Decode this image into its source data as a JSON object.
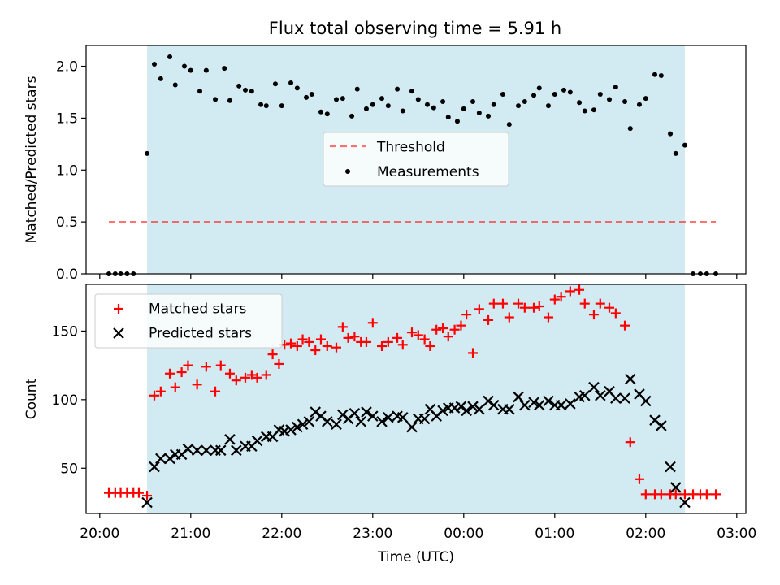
{
  "title": "Flux total observing time = 5.91 h",
  "colors": {
    "shade": "#add8e6",
    "threshold": "#ff0000",
    "matched": "#ff0000",
    "predicted": "#000000",
    "measurements": "#000000"
  },
  "chart_data": [
    {
      "type": "scatter",
      "ylabel": "Matched/Predicted stars",
      "ylim": [
        0,
        2.2
      ],
      "xlim": [
        19.85,
        27.1
      ],
      "yticks": [
        "0.0",
        "0.5",
        "1.0",
        "1.5",
        "2.0"
      ],
      "ytick_values": [
        0,
        0.5,
        1.0,
        1.5,
        2.0
      ],
      "shaded_span": [
        20.52,
        26.43
      ],
      "threshold": {
        "name": "Threshold",
        "y": 0.5,
        "x_range": [
          20.1,
          26.77
        ],
        "style": "dashed"
      },
      "legend": {
        "placement": "center",
        "entries": [
          "Threshold",
          "Measurements"
        ]
      },
      "series": [
        {
          "name": "Measurements",
          "x": [
            20.1,
            20.17,
            20.23,
            20.3,
            20.37,
            20.52,
            20.6,
            20.67,
            20.77,
            20.83,
            20.93,
            21.0,
            21.1,
            21.17,
            21.27,
            21.37,
            21.43,
            21.53,
            21.6,
            21.67,
            21.77,
            21.83,
            21.93,
            22.0,
            22.1,
            22.17,
            22.27,
            22.33,
            22.43,
            22.5,
            22.6,
            22.67,
            22.77,
            22.83,
            22.93,
            23.0,
            23.1,
            23.17,
            23.27,
            23.33,
            23.43,
            23.5,
            23.6,
            23.67,
            23.77,
            23.83,
            23.93,
            24.0,
            24.1,
            24.17,
            24.27,
            24.33,
            24.43,
            24.5,
            24.6,
            24.67,
            24.77,
            24.83,
            24.93,
            25.0,
            25.1,
            25.17,
            25.27,
            25.33,
            25.43,
            25.5,
            25.6,
            25.67,
            25.77,
            25.83,
            25.93,
            26.0,
            26.1,
            26.17,
            26.27,
            26.33,
            26.43,
            26.52,
            26.6,
            26.67,
            26.77
          ],
          "y": [
            0,
            0,
            0,
            0,
            0,
            1.16,
            2.02,
            1.88,
            2.09,
            1.82,
            2.0,
            1.96,
            1.76,
            1.96,
            1.68,
            1.98,
            1.67,
            1.81,
            1.77,
            1.76,
            1.63,
            1.62,
            1.83,
            1.62,
            1.84,
            1.79,
            1.7,
            1.73,
            1.56,
            1.54,
            1.68,
            1.69,
            1.52,
            1.78,
            1.59,
            1.63,
            1.69,
            1.62,
            1.78,
            1.57,
            1.76,
            1.68,
            1.63,
            1.6,
            1.66,
            1.51,
            1.47,
            1.59,
            1.66,
            1.55,
            1.52,
            1.63,
            1.73,
            1.44,
            1.62,
            1.66,
            1.72,
            1.79,
            1.62,
            1.73,
            1.77,
            1.75,
            1.65,
            1.57,
            1.58,
            1.73,
            1.68,
            1.8,
            1.66,
            1.4,
            1.63,
            1.69,
            1.92,
            1.91,
            1.35,
            1.16,
            1.24,
            0,
            0,
            0,
            0
          ]
        }
      ]
    },
    {
      "type": "scatter",
      "ylabel": "Count",
      "xlabel": "Time (UTC)",
      "ylim": [
        17,
        184
      ],
      "xlim": [
        19.85,
        27.1
      ],
      "yticks": [
        "50",
        "100",
        "150"
      ],
      "ytick_values": [
        50,
        100,
        150
      ],
      "xticks": [
        "20:00",
        "21:00",
        "22:00",
        "23:00",
        "00:00",
        "01:00",
        "02:00",
        "03:00"
      ],
      "xtick_values": [
        20,
        21,
        22,
        23,
        24,
        25,
        26,
        27
      ],
      "shaded_span": [
        20.52,
        26.43
      ],
      "legend": {
        "placement": "upper left",
        "entries": [
          "Matched stars",
          "Predicted stars"
        ]
      },
      "series": [
        {
          "name": "Matched stars",
          "x": [
            20.1,
            20.17,
            20.23,
            20.3,
            20.37,
            20.43,
            20.52,
            20.6,
            20.67,
            20.77,
            20.83,
            20.9,
            20.97,
            21.07,
            21.17,
            21.27,
            21.33,
            21.43,
            21.5,
            21.6,
            21.67,
            21.73,
            21.83,
            21.9,
            21.97,
            22.03,
            22.1,
            22.17,
            22.23,
            22.3,
            22.37,
            22.43,
            22.5,
            22.6,
            22.67,
            22.73,
            22.8,
            22.87,
            22.93,
            23.0,
            23.1,
            23.17,
            23.27,
            23.33,
            23.43,
            23.5,
            23.57,
            23.63,
            23.7,
            23.77,
            23.83,
            23.9,
            23.97,
            24.03,
            24.1,
            24.17,
            24.27,
            24.33,
            24.43,
            24.5,
            24.6,
            24.67,
            24.77,
            24.83,
            24.93,
            25.0,
            25.07,
            25.17,
            25.27,
            25.33,
            25.43,
            25.5,
            25.6,
            25.67,
            25.77,
            25.83,
            25.93,
            26.0,
            26.1,
            26.17,
            26.27,
            26.33,
            26.43,
            26.52,
            26.6,
            26.67,
            26.77
          ],
          "y": [
            32,
            32,
            32,
            32,
            32,
            32,
            30,
            103,
            106,
            119,
            109,
            120,
            125,
            111,
            124,
            106,
            125,
            119,
            114,
            116,
            118,
            116,
            118,
            133,
            126,
            140,
            141,
            139,
            144,
            142,
            136,
            144,
            139,
            138,
            153,
            145,
            146,
            142,
            142,
            156,
            139,
            142,
            145,
            140,
            149,
            147,
            144,
            139,
            151,
            152,
            146,
            151,
            154,
            162,
            134,
            166,
            158,
            170,
            170,
            160,
            170,
            167,
            167,
            168,
            160,
            173,
            175,
            179,
            180,
            170,
            162,
            170,
            167,
            163,
            154,
            69,
            42,
            31,
            31,
            31,
            31,
            31,
            31,
            31,
            31,
            31,
            31
          ]
        },
        {
          "name": "Predicted stars",
          "x": [
            20.52,
            20.6,
            20.67,
            20.77,
            20.83,
            20.9,
            20.97,
            21.07,
            21.17,
            21.27,
            21.33,
            21.43,
            21.5,
            21.6,
            21.67,
            21.73,
            21.83,
            21.9,
            21.97,
            22.03,
            22.1,
            22.17,
            22.23,
            22.3,
            22.37,
            22.43,
            22.5,
            22.6,
            22.67,
            22.73,
            22.8,
            22.87,
            22.93,
            23.0,
            23.1,
            23.17,
            23.27,
            23.33,
            23.43,
            23.5,
            23.57,
            23.63,
            23.7,
            23.77,
            23.83,
            23.9,
            23.97,
            24.03,
            24.1,
            24.17,
            24.27,
            24.33,
            24.43,
            24.5,
            24.6,
            24.67,
            24.77,
            24.83,
            24.93,
            25.0,
            25.07,
            25.17,
            25.27,
            25.33,
            25.43,
            25.5,
            25.6,
            25.67,
            25.77,
            25.83,
            25.93,
            26.0,
            26.1,
            26.17,
            26.27,
            26.33,
            26.43
          ],
          "y": [
            25,
            51,
            57,
            57,
            60,
            60,
            64,
            63,
            63,
            63,
            63,
            71,
            63,
            66,
            66,
            70,
            73,
            73,
            78,
            77,
            78,
            80,
            82,
            84,
            91,
            88,
            84,
            82,
            89,
            86,
            90,
            84,
            91,
            88,
            84,
            87,
            88,
            87,
            80,
            86,
            86,
            93,
            88,
            92,
            94,
            94,
            95,
            92,
            95,
            93,
            99,
            96,
            93,
            93,
            102,
            96,
            98,
            96,
            99,
            96,
            96,
            97,
            102,
            103,
            109,
            103,
            106,
            101,
            101,
            115,
            104,
            99,
            85,
            81,
            51,
            36,
            25
          ]
        }
      ]
    }
  ]
}
